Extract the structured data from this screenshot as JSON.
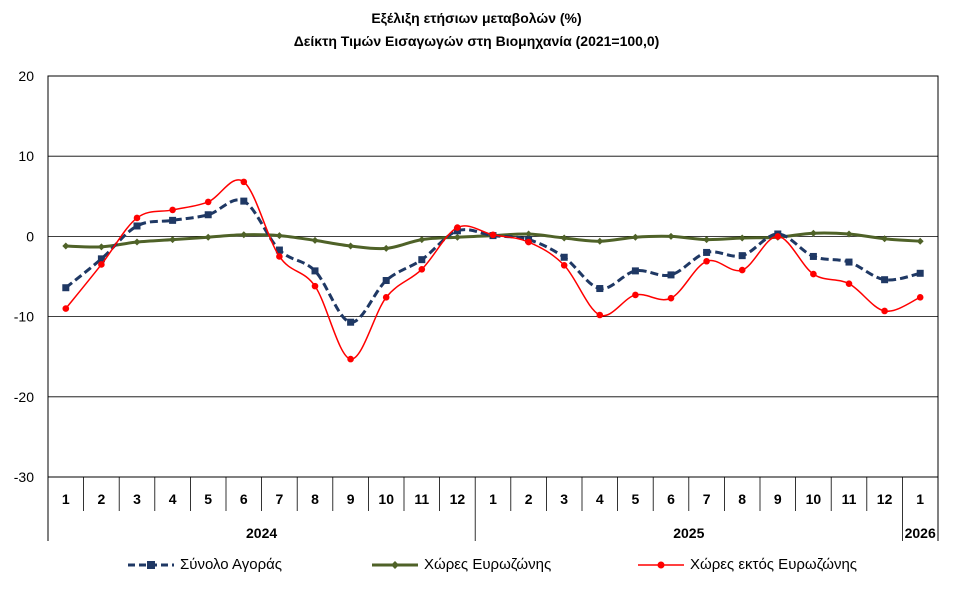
{
  "title": "Εξέλιξη ετήσιων μεταβολών (%)",
  "subtitle": "Δείκτη Τιμών Εισαγωγών στη Βιομηχανία (2021=100,0)",
  "chart_data": {
    "type": "line",
    "title": "Εξέλιξη ετήσιων μεταβολών (%)",
    "subtitle": "Δείκτη Τιμών Εισαγωγών στη Βιομηχανία (2021=100,0)",
    "categories": [
      "1",
      "2",
      "3",
      "4",
      "5",
      "6",
      "7",
      "8",
      "9",
      "10",
      "11",
      "12",
      "1",
      "2",
      "3",
      "4",
      "5",
      "6",
      "7",
      "8",
      "9",
      "10",
      "11",
      "12",
      "1"
    ],
    "year_groups": [
      {
        "label": "2024",
        "start": 0,
        "count": 12
      },
      {
        "label": "2025",
        "start": 12,
        "count": 12
      },
      {
        "label": "2026",
        "start": 24,
        "count": 1
      }
    ],
    "ylim": [
      -30,
      20
    ],
    "yticks": [
      20,
      10,
      0,
      -10,
      -20,
      -30
    ],
    "grid": true,
    "legend": "bottom",
    "series": [
      {
        "name": "Σύνολο Αγοράς",
        "color": "#1f3864",
        "style": "dashed-square",
        "values": [
          -6.4,
          -2.8,
          1.3,
          2.0,
          2.7,
          4.4,
          -1.7,
          -4.3,
          -10.7,
          -5.5,
          -2.9,
          0.7,
          0.1,
          -0.4,
          -2.6,
          -6.5,
          -4.3,
          -4.8,
          -2.0,
          -2.4,
          0.3,
          -2.5,
          -3.2,
          -5.4,
          -4.6
        ]
      },
      {
        "name": "Χώρες Ευρωζώνης",
        "color": "#4f6228",
        "style": "solid-diamond",
        "values": [
          -1.2,
          -1.3,
          -0.7,
          -0.4,
          -0.1,
          0.2,
          0.1,
          -0.5,
          -1.2,
          -1.5,
          -0.4,
          -0.1,
          0.1,
          0.3,
          -0.2,
          -0.6,
          -0.1,
          0.0,
          -0.4,
          -0.2,
          -0.1,
          0.4,
          0.3,
          -0.3,
          -0.6
        ]
      },
      {
        "name": "Χώρες εκτός Ευρωζώνης",
        "color": "#ff0000",
        "style": "solid-circle",
        "values": [
          -9.0,
          -3.5,
          2.3,
          3.3,
          4.3,
          6.8,
          -2.5,
          -6.2,
          -15.3,
          -7.6,
          -4.1,
          1.1,
          0.2,
          -0.7,
          -3.6,
          -9.8,
          -7.3,
          -7.7,
          -3.1,
          -4.2,
          0.0,
          -4.7,
          -5.9,
          -9.3,
          -7.6
        ]
      }
    ]
  }
}
